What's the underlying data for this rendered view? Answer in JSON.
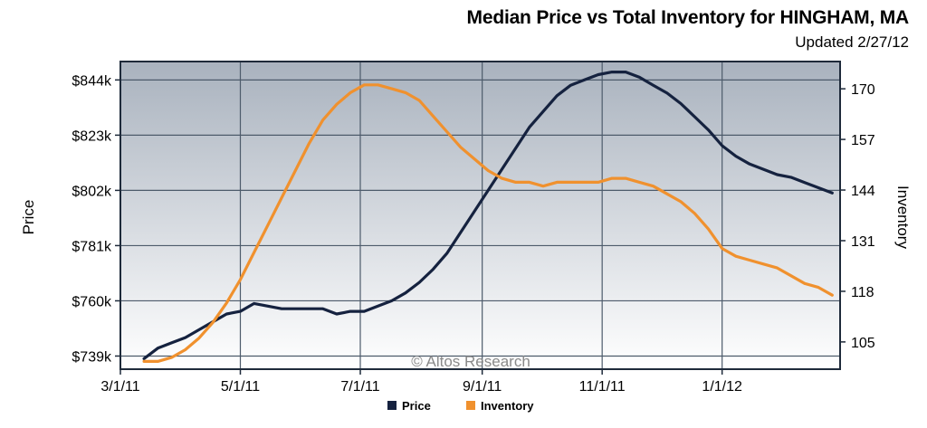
{
  "header": {
    "title": "Median Price vs Total Inventory for HINGHAM, MA",
    "updated": "Updated 2/27/12"
  },
  "watermark": "© Altos Research",
  "colors": {
    "price": "#15223f",
    "inventory": "#f0912e",
    "plot_top": "#a9b2be",
    "plot_bottom": "#ffffff",
    "grid": "#4d5b6b"
  },
  "chart_data": {
    "type": "line",
    "title": "Median Price vs Total Inventory for HINGHAM, MA",
    "xlabel": "",
    "ylabel_left": "Price",
    "ylabel_right": "Inventory",
    "x_ticks": [
      {
        "date": "2011-03-01",
        "label": "3/1/11"
      },
      {
        "date": "2011-05-01",
        "label": "5/1/11"
      },
      {
        "date": "2011-07-01",
        "label": "7/1/11"
      },
      {
        "date": "2011-09-01",
        "label": "9/1/11"
      },
      {
        "date": "2011-11-01",
        "label": "11/1/11"
      },
      {
        "date": "2012-01-01",
        "label": "1/1/12"
      }
    ],
    "xlim": [
      "2011-03-01",
      "2012-03-01"
    ],
    "y_left": {
      "ticks": [
        739,
        760,
        781,
        802,
        823,
        844
      ],
      "tick_labels": [
        "$739k",
        "$760k",
        "$781k",
        "$802k",
        "$823k",
        "$844k"
      ],
      "lim": [
        734,
        851
      ]
    },
    "y_right": {
      "ticks": [
        105,
        118,
        131,
        144,
        157,
        170
      ],
      "tick_labels": [
        "105",
        "118",
        "131",
        "144",
        "157",
        "170"
      ],
      "lim": [
        98,
        177
      ]
    },
    "grid": true,
    "legend": {
      "placement": "bottom-center",
      "entries": [
        "Price",
        "Inventory"
      ]
    },
    "series": [
      {
        "name": "Price",
        "axis": "left",
        "points": [
          [
            "2011-03-13",
            738
          ],
          [
            "2011-03-20",
            742
          ],
          [
            "2011-03-27",
            744
          ],
          [
            "2011-04-03",
            746
          ],
          [
            "2011-04-10",
            749
          ],
          [
            "2011-04-17",
            752
          ],
          [
            "2011-04-24",
            755
          ],
          [
            "2011-05-01",
            756
          ],
          [
            "2011-05-08",
            759
          ],
          [
            "2011-05-15",
            758
          ],
          [
            "2011-05-22",
            757
          ],
          [
            "2011-05-29",
            757
          ],
          [
            "2011-06-05",
            757
          ],
          [
            "2011-06-12",
            757
          ],
          [
            "2011-06-19",
            755
          ],
          [
            "2011-06-26",
            756
          ],
          [
            "2011-07-03",
            756
          ],
          [
            "2011-07-10",
            758
          ],
          [
            "2011-07-17",
            760
          ],
          [
            "2011-07-24",
            763
          ],
          [
            "2011-07-31",
            767
          ],
          [
            "2011-08-07",
            772
          ],
          [
            "2011-08-14",
            778
          ],
          [
            "2011-08-21",
            786
          ],
          [
            "2011-08-28",
            794
          ],
          [
            "2011-09-04",
            802
          ],
          [
            "2011-09-11",
            810
          ],
          [
            "2011-09-18",
            818
          ],
          [
            "2011-09-25",
            826
          ],
          [
            "2011-10-02",
            832
          ],
          [
            "2011-10-09",
            838
          ],
          [
            "2011-10-16",
            842
          ],
          [
            "2011-10-23",
            844
          ],
          [
            "2011-10-30",
            846
          ],
          [
            "2011-11-06",
            847
          ],
          [
            "2011-11-13",
            847
          ],
          [
            "2011-11-20",
            845
          ],
          [
            "2011-11-27",
            842
          ],
          [
            "2011-12-04",
            839
          ],
          [
            "2011-12-11",
            835
          ],
          [
            "2011-12-18",
            830
          ],
          [
            "2011-12-25",
            825
          ],
          [
            "2012-01-01",
            819
          ],
          [
            "2012-01-08",
            815
          ],
          [
            "2012-01-15",
            812
          ],
          [
            "2012-01-22",
            810
          ],
          [
            "2012-01-29",
            808
          ],
          [
            "2012-02-05",
            807
          ],
          [
            "2012-02-12",
            805
          ],
          [
            "2012-02-19",
            803
          ],
          [
            "2012-02-26",
            801
          ]
        ]
      },
      {
        "name": "Inventory",
        "axis": "right",
        "points": [
          [
            "2011-03-13",
            100
          ],
          [
            "2011-03-20",
            100
          ],
          [
            "2011-03-27",
            101
          ],
          [
            "2011-04-03",
            103
          ],
          [
            "2011-04-10",
            106
          ],
          [
            "2011-04-17",
            110
          ],
          [
            "2011-04-24",
            115
          ],
          [
            "2011-05-01",
            121
          ],
          [
            "2011-05-08",
            128
          ],
          [
            "2011-05-15",
            135
          ],
          [
            "2011-05-22",
            142
          ],
          [
            "2011-05-29",
            149
          ],
          [
            "2011-06-05",
            156
          ],
          [
            "2011-06-12",
            162
          ],
          [
            "2011-06-19",
            166
          ],
          [
            "2011-06-26",
            169
          ],
          [
            "2011-07-03",
            171
          ],
          [
            "2011-07-10",
            171
          ],
          [
            "2011-07-17",
            170
          ],
          [
            "2011-07-24",
            169
          ],
          [
            "2011-07-31",
            167
          ],
          [
            "2011-08-07",
            163
          ],
          [
            "2011-08-14",
            159
          ],
          [
            "2011-08-21",
            155
          ],
          [
            "2011-08-28",
            152
          ],
          [
            "2011-09-04",
            149
          ],
          [
            "2011-09-11",
            147
          ],
          [
            "2011-09-18",
            146
          ],
          [
            "2011-09-25",
            146
          ],
          [
            "2011-10-02",
            145
          ],
          [
            "2011-10-09",
            146
          ],
          [
            "2011-10-16",
            146
          ],
          [
            "2011-10-23",
            146
          ],
          [
            "2011-10-30",
            146
          ],
          [
            "2011-11-06",
            147
          ],
          [
            "2011-11-13",
            147
          ],
          [
            "2011-11-20",
            146
          ],
          [
            "2011-11-27",
            145
          ],
          [
            "2011-12-04",
            143
          ],
          [
            "2011-12-11",
            141
          ],
          [
            "2011-12-18",
            138
          ],
          [
            "2011-12-25",
            134
          ],
          [
            "2012-01-01",
            129
          ],
          [
            "2012-01-08",
            127
          ],
          [
            "2012-01-15",
            126
          ],
          [
            "2012-01-22",
            125
          ],
          [
            "2012-01-29",
            124
          ],
          [
            "2012-02-05",
            122
          ],
          [
            "2012-02-12",
            120
          ],
          [
            "2012-02-19",
            119
          ],
          [
            "2012-02-26",
            117
          ]
        ]
      }
    ]
  }
}
